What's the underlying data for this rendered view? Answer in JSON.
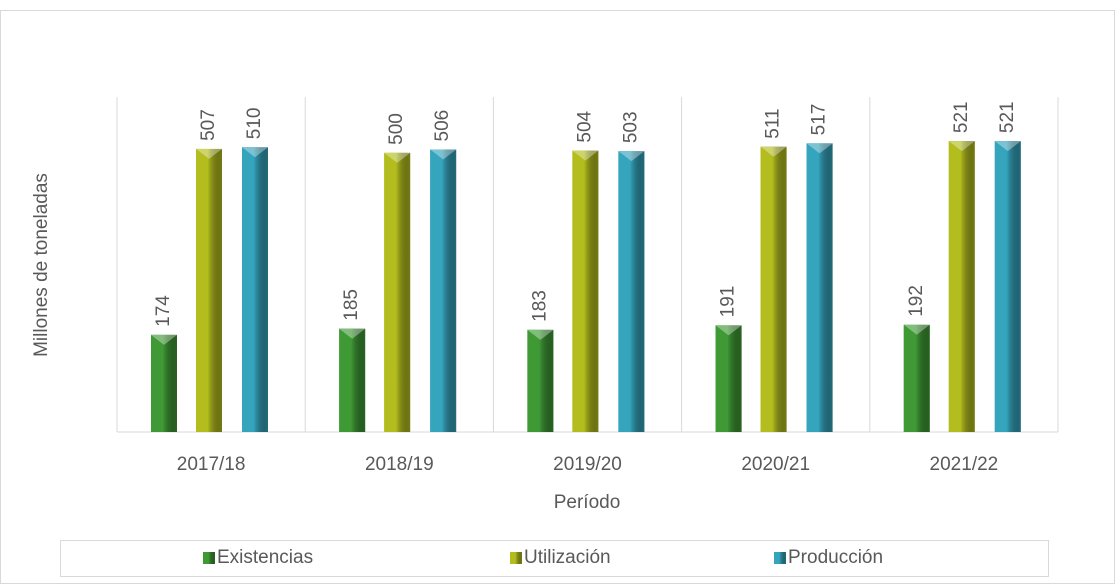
{
  "chart_data": {
    "type": "bar",
    "x_label": "Período",
    "y_label": "Millones de toneladas",
    "categories": [
      "2017/18",
      "2018/19",
      "2019/20",
      "2020/21",
      "2021/22"
    ],
    "series": [
      {
        "name": "Existencias",
        "color": "#3f9a36",
        "values": [
          174,
          185,
          183,
          191,
          192
        ]
      },
      {
        "name": "Utilización",
        "color": "#b3bd1e",
        "values": [
          507,
          500,
          504,
          511,
          521
        ]
      },
      {
        "name": "Producción",
        "color": "#35a4bd",
        "values": [
          510,
          506,
          503,
          517,
          521
        ]
      }
    ],
    "ylim": [
      0,
      600
    ],
    "legend": "bottom"
  }
}
